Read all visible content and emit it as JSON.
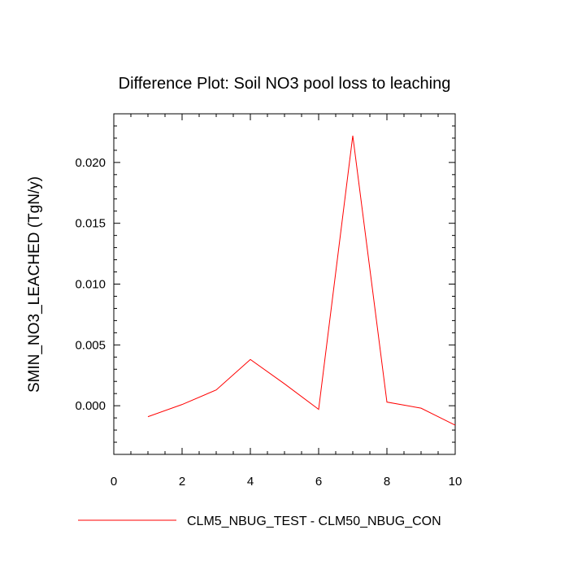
{
  "chart_data": {
    "type": "line",
    "title": "Difference Plot: Soil NO3 pool loss to leaching",
    "xlabel": "",
    "ylabel": "SMIN_NO3_LEACHED  (TgN/y)",
    "xlim": [
      0,
      10
    ],
    "ylim": [
      -0.004,
      0.024
    ],
    "xticks": [
      0,
      2,
      4,
      6,
      8,
      10
    ],
    "xtick_labels": [
      "0",
      "2",
      "4",
      "6",
      "8",
      "10"
    ],
    "yticks": [
      0.0,
      0.005,
      0.01,
      0.015,
      0.02
    ],
    "ytick_labels": [
      "0.000",
      "0.005",
      "0.010",
      "0.015",
      "0.020"
    ],
    "grid": false,
    "legend_position": "bottom",
    "series": [
      {
        "name": "CLM5_NBUG_TEST - CLM50_NBUG_CON",
        "color": "#ff0000",
        "x": [
          1,
          2,
          3,
          4,
          5,
          6,
          7,
          8,
          9,
          10
        ],
        "y": [
          -0.0009,
          0.0001,
          0.0013,
          0.0038,
          0.0018,
          -0.0003,
          0.0222,
          0.0003,
          -0.0002,
          -0.0016
        ]
      }
    ]
  }
}
